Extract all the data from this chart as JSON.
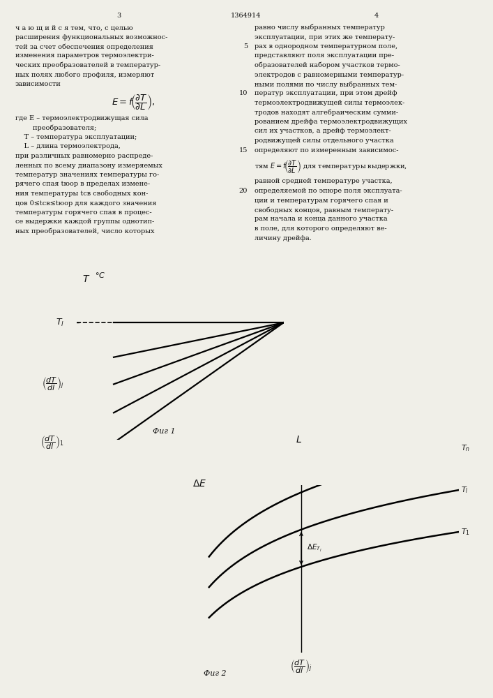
{
  "page_number_left": "3",
  "page_number_center": "1364914",
  "page_number_right": "4",
  "background_color": "#f0efe8",
  "text_color": "#111111",
  "fig1_title": "Фиг 1",
  "fig2_title": "Фиг 2",
  "left_col_text": "ч а ю щ и й с я тем, что, с целью\nрасширения функциональных возможнос-\nтей за счет обеспечения определения\nизменения параметров термоэлектри-\nческих преобразователей в температур-\nных полях любого профиля, измеряют\nзависимости",
  "right_col_text": "равно числу выбранных температур\nэксплуатации, при этих же температу-\nрах в однородном температурном поле,\nпредставляют поля эксплуатации пре-\nобразователей набором участков термо-\nэлектродов с равномерными температур-\nными полями по числу выбранных тем-\nператур эксплуатации, при этом дрейф\nтермоэлектродвижущей силы термоэлек-\nтродов находят алгебраическим сумми-\nрованием дрейфа термоэлектродвижущих\nсил их участков, а дрейф термоэлект-\nродвижущей силы отдельного участка\nопределяют по измеренным зависимос-",
  "formula_desc": "где E – термоэлектродвижущая сила\n        преобразователя;\n    T – температура эксплуатации;\n    L – длина термоэлектрода,\nпри различных равномерно распреде-\nленных по всему диапазону измеряемых\nтемператур значениях температуры го-\nрячего спая tюop в пределах измене-\nния температуры tсв свободных кон-\nцов 0≤tсв≤tюop для каждого значения\nтемпературы горячего спая в процес-\nсе выдержки каждой группы однотип-\nных преобразователей, число которых"
}
